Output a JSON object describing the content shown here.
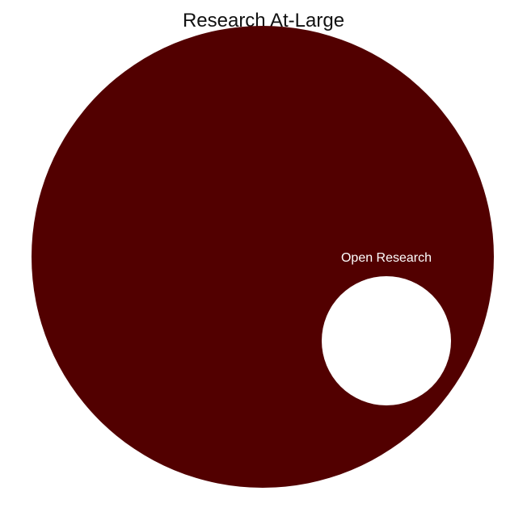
{
  "title": "Research At-Large",
  "outer_circle": {
    "label": "Research At-Large",
    "color": "#520000"
  },
  "inner_circle": {
    "label": "Open Research",
    "color": "#ffffff",
    "label_color": "#ffffff"
  }
}
